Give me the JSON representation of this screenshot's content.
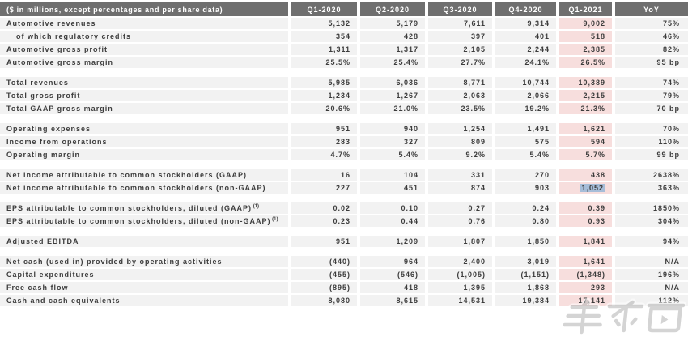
{
  "table": {
    "header": {
      "label": "($ in millions, except percentages and per share data)",
      "columns": [
        "Q1-2020",
        "Q2-2020",
        "Q3-2020",
        "Q4-2020",
        "Q1-2021",
        "YoY"
      ]
    },
    "rows": [
      {
        "label": "Automotive revenues",
        "values": [
          "5,132",
          "5,179",
          "7,611",
          "9,314",
          "9,002",
          "75%"
        ]
      },
      {
        "label": "of which regulatory credits",
        "indent": true,
        "values": [
          "354",
          "428",
          "397",
          "401",
          "518",
          "46%"
        ]
      },
      {
        "label": "Automotive gross profit",
        "values": [
          "1,311",
          "1,317",
          "2,105",
          "2,244",
          "2,385",
          "82%"
        ]
      },
      {
        "label": "Automotive gross margin",
        "values": [
          "25.5%",
          "25.4%",
          "27.7%",
          "24.1%",
          "26.5%",
          "95 bp"
        ]
      },
      {
        "spacer": true
      },
      {
        "label": "Total revenues",
        "values": [
          "5,985",
          "6,036",
          "8,771",
          "10,744",
          "10,389",
          "74%"
        ]
      },
      {
        "label": "Total gross profit",
        "values": [
          "1,234",
          "1,267",
          "2,063",
          "2,066",
          "2,215",
          "79%"
        ]
      },
      {
        "label": "Total GAAP gross margin",
        "values": [
          "20.6%",
          "21.0%",
          "23.5%",
          "19.2%",
          "21.3%",
          "70 bp"
        ]
      },
      {
        "spacer": true
      },
      {
        "label": "Operating expenses",
        "values": [
          "951",
          "940",
          "1,254",
          "1,491",
          "1,621",
          "70%"
        ]
      },
      {
        "label": "Income from operations",
        "values": [
          "283",
          "327",
          "809",
          "575",
          "594",
          "110%"
        ]
      },
      {
        "label": "Operating margin",
        "values": [
          "4.7%",
          "5.4%",
          "9.2%",
          "5.4%",
          "5.7%",
          "99 bp"
        ]
      },
      {
        "spacer": true
      },
      {
        "label": "Net income attributable to common stockholders (GAAP)",
        "values": [
          "16",
          "104",
          "331",
          "270",
          "438",
          "2638%"
        ]
      },
      {
        "label": "Net income attributable to common stockholders (non-GAAP)",
        "values": [
          "227",
          "451",
          "874",
          "903",
          "1,052",
          "363%"
        ],
        "selected_col": 4
      },
      {
        "spacer": true
      },
      {
        "label": "EPS attributable to common stockholders, diluted (GAAP)",
        "sup": "(1)",
        "values": [
          "0.02",
          "0.10",
          "0.27",
          "0.24",
          "0.39",
          "1850%"
        ]
      },
      {
        "label": "EPS attributable to common stockholders, diluted (non-GAAP)",
        "sup": "(1)",
        "values": [
          "0.23",
          "0.44",
          "0.76",
          "0.80",
          "0.93",
          "304%"
        ]
      },
      {
        "spacer": true
      },
      {
        "label": "Adjusted EBITDA",
        "values": [
          "951",
          "1,209",
          "1,807",
          "1,850",
          "1,841",
          "94%"
        ]
      },
      {
        "spacer": true
      },
      {
        "label": "Net cash (used in) provided by operating activities",
        "values": [
          "(440)",
          "964",
          "2,400",
          "3,019",
          "1,641",
          "N/A"
        ]
      },
      {
        "label": "Capital expenditures",
        "values": [
          "(455)",
          "(546)",
          "(1,005)",
          "(1,151)",
          "(1,348)",
          "196%"
        ]
      },
      {
        "label": "Free cash flow",
        "values": [
          "(895)",
          "418",
          "1,395",
          "1,868",
          "293",
          "N/A"
        ]
      },
      {
        "label": "Cash and cash equivalents",
        "values": [
          "8,080",
          "8,615",
          "14,531",
          "19,384",
          "17,141",
          "112%"
        ]
      }
    ],
    "highlighted_column": "Q1-2021",
    "selected_cell_value": "1,052"
  },
  "watermark": {
    "text": "车东西"
  },
  "colors": {
    "header_bg": "#6f6f6f",
    "header_text": "#ffffff",
    "row_bg": "#f2f2f2",
    "highlight_column_bg": "#f7dedd",
    "text_selection_bg": "#a6bdd8",
    "body_text": "#3c3c3c"
  }
}
